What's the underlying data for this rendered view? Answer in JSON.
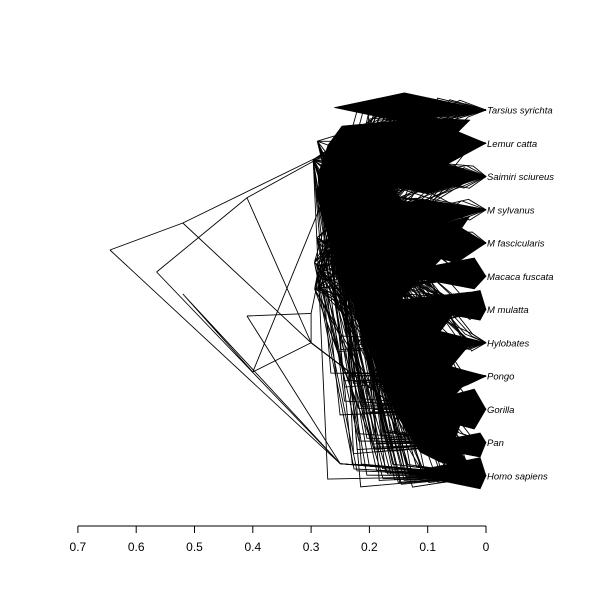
{
  "chart_data": {
    "type": "densitree",
    "taxa": [
      "Tarsius syrichta",
      "Lemur catta",
      "Saimiri sciureus",
      "M sylvanus",
      "M fascicularis",
      "Macaca fuscata",
      "M mulatta",
      "Hylobates",
      "Pongo",
      "Gorilla",
      "Pan",
      "Homo sapiens"
    ],
    "x_axis": {
      "ticks": [
        0.7,
        0.6,
        0.5,
        0.4,
        0.3,
        0.2,
        0.1,
        0
      ],
      "tick_labels": [
        "0.7",
        "0.6",
        "0.5",
        "0.4",
        "0.3",
        "0.2",
        "0.1",
        "0"
      ],
      "range": [
        0.7,
        0
      ],
      "direction": "reversed"
    },
    "outlier_trees": [
      {
        "root_depth": 0.645,
        "anchor_depth": 0.52,
        "anchor_tip": 4
      },
      {
        "root_depth": 0.565,
        "anchor_depth": 0.41,
        "anchor_tip": 3
      },
      {
        "root_depth": 0.52,
        "anchor_depth": 0.4,
        "anchor_tip": 8
      },
      {
        "root_depth": 0.41,
        "anchor_depth": 0.3,
        "anchor_tip": 6
      }
    ],
    "main_root_depth_range": [
      0.21,
      0.3
    ],
    "grid": false,
    "legend": "none"
  }
}
